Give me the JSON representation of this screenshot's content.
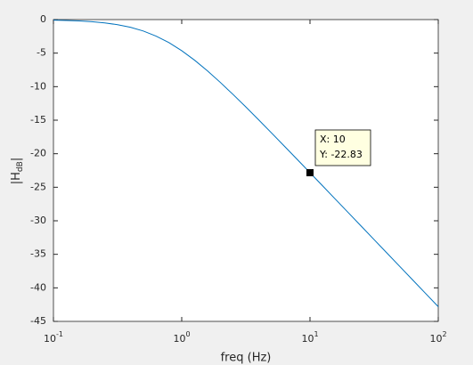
{
  "chart_data": {
    "type": "line",
    "xlabel": "freq (Hz)",
    "ylabel_parts": [
      "|H",
      "dB",
      "|"
    ],
    "x": [
      0.1,
      0.1259,
      0.1585,
      0.1995,
      0.2512,
      0.3162,
      0.3981,
      0.5012,
      0.631,
      0.7943,
      1,
      1.259,
      1.585,
      1.995,
      2.512,
      3.162,
      3.981,
      5.012,
      6.31,
      7.943,
      10,
      12.59,
      15.85,
      19.95,
      25.12,
      31.62,
      39.81,
      50.12,
      63.1,
      79.43,
      100
    ],
    "series": [
      {
        "color": "#0072bd",
        "values": [
          -0.08,
          -0.13,
          -0.2,
          -0.32,
          -0.5,
          -0.76,
          -1.15,
          -1.7,
          -2.46,
          -3.43,
          -4.64,
          -6.05,
          -7.63,
          -9.35,
          -11.16,
          -13.03,
          -14.95,
          -16.9,
          -18.87,
          -20.84,
          -22.83,
          -24.82,
          -26.82,
          -28.81,
          -30.81,
          -32.81,
          -34.81,
          -36.81,
          -38.81,
          -40.81,
          -42.81
        ]
      }
    ],
    "xlim": [
      0.1,
      100
    ],
    "xscale": "log",
    "xticks": [
      {
        "value": 0.1,
        "label": "10",
        "exponent": "-1"
      },
      {
        "value": 1,
        "label": "10",
        "exponent": "0"
      },
      {
        "value": 10,
        "label": "10",
        "exponent": "1"
      },
      {
        "value": 100,
        "label": "10",
        "exponent": "2"
      }
    ],
    "ylim": [
      -45,
      0
    ],
    "yticks": [
      0,
      -5,
      -10,
      -15,
      -20,
      -25,
      -30,
      -35,
      -40,
      -45
    ],
    "datatip": {
      "x": 10,
      "y": -22.83,
      "labels": [
        "X: 10",
        "Y: -22.83"
      ]
    }
  }
}
